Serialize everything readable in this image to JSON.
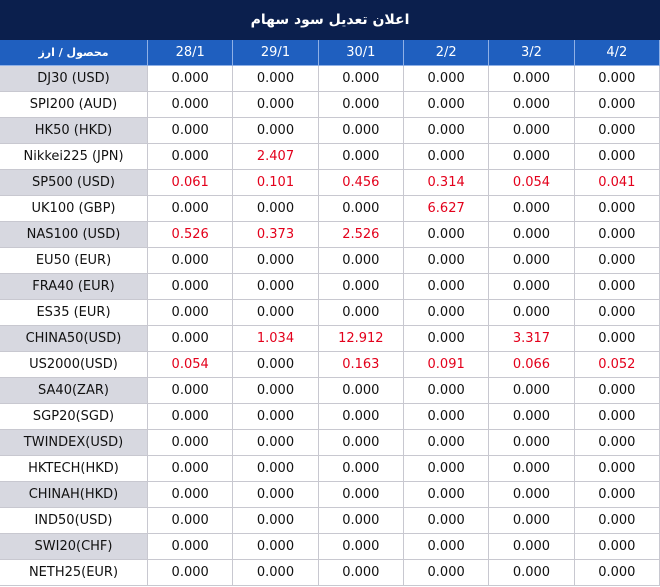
{
  "title": "اعلان تعدیل سود سهام",
  "table": {
    "highlight_color": "#e3001b",
    "header": [
      "محصول / ارز",
      "28/1",
      "29/1",
      "30/1",
      "2/2",
      "3/2",
      "4/2"
    ],
    "rows": [
      [
        "DJ30 (USD)",
        "0.000",
        "0.000",
        "0.000",
        "0.000",
        "0.000",
        "0.000"
      ],
      [
        "SPI200 (AUD)",
        "0.000",
        "0.000",
        "0.000",
        "0.000",
        "0.000",
        "0.000"
      ],
      [
        "HK50 (HKD)",
        "0.000",
        "0.000",
        "0.000",
        "0.000",
        "0.000",
        "0.000"
      ],
      [
        "Nikkei225 (JPN)",
        "0.000",
        "2.407",
        "0.000",
        "0.000",
        "0.000",
        "0.000"
      ],
      [
        "SP500 (USD)",
        "0.061",
        "0.101",
        "0.456",
        "0.314",
        "0.054",
        "0.041"
      ],
      [
        "UK100 (GBP)",
        "0.000",
        "0.000",
        "0.000",
        "6.627",
        "0.000",
        "0.000"
      ],
      [
        "NAS100 (USD)",
        "0.526",
        "0.373",
        "2.526",
        "0.000",
        "0.000",
        "0.000"
      ],
      [
        "EU50 (EUR)",
        "0.000",
        "0.000",
        "0.000",
        "0.000",
        "0.000",
        "0.000"
      ],
      [
        "FRA40 (EUR)",
        "0.000",
        "0.000",
        "0.000",
        "0.000",
        "0.000",
        "0.000"
      ],
      [
        "ES35 (EUR)",
        "0.000",
        "0.000",
        "0.000",
        "0.000",
        "0.000",
        "0.000"
      ],
      [
        "CHINA50(USD)",
        "0.000",
        "1.034",
        "12.912",
        "0.000",
        "3.317",
        "0.000"
      ],
      [
        "US2000(USD)",
        "0.054",
        "0.000",
        "0.163",
        "0.091",
        "0.066",
        "0.052"
      ],
      [
        "SA40(ZAR)",
        "0.000",
        "0.000",
        "0.000",
        "0.000",
        "0.000",
        "0.000"
      ],
      [
        "SGP20(SGD)",
        "0.000",
        "0.000",
        "0.000",
        "0.000",
        "0.000",
        "0.000"
      ],
      [
        "TWINDEX(USD)",
        "0.000",
        "0.000",
        "0.000",
        "0.000",
        "0.000",
        "0.000"
      ],
      [
        "HKTECH(HKD)",
        "0.000",
        "0.000",
        "0.000",
        "0.000",
        "0.000",
        "0.000"
      ],
      [
        "CHINAH(HKD)",
        "0.000",
        "0.000",
        "0.000",
        "0.000",
        "0.000",
        "0.000"
      ],
      [
        "IND50(USD)",
        "0.000",
        "0.000",
        "0.000",
        "0.000",
        "0.000",
        "0.000"
      ],
      [
        "SWI20(CHF)",
        "0.000",
        "0.000",
        "0.000",
        "0.000",
        "0.000",
        "0.000"
      ],
      [
        "NETH25(EUR)",
        "0.000",
        "0.000",
        "0.000",
        "0.000",
        "0.000",
        "0.000"
      ]
    ]
  }
}
